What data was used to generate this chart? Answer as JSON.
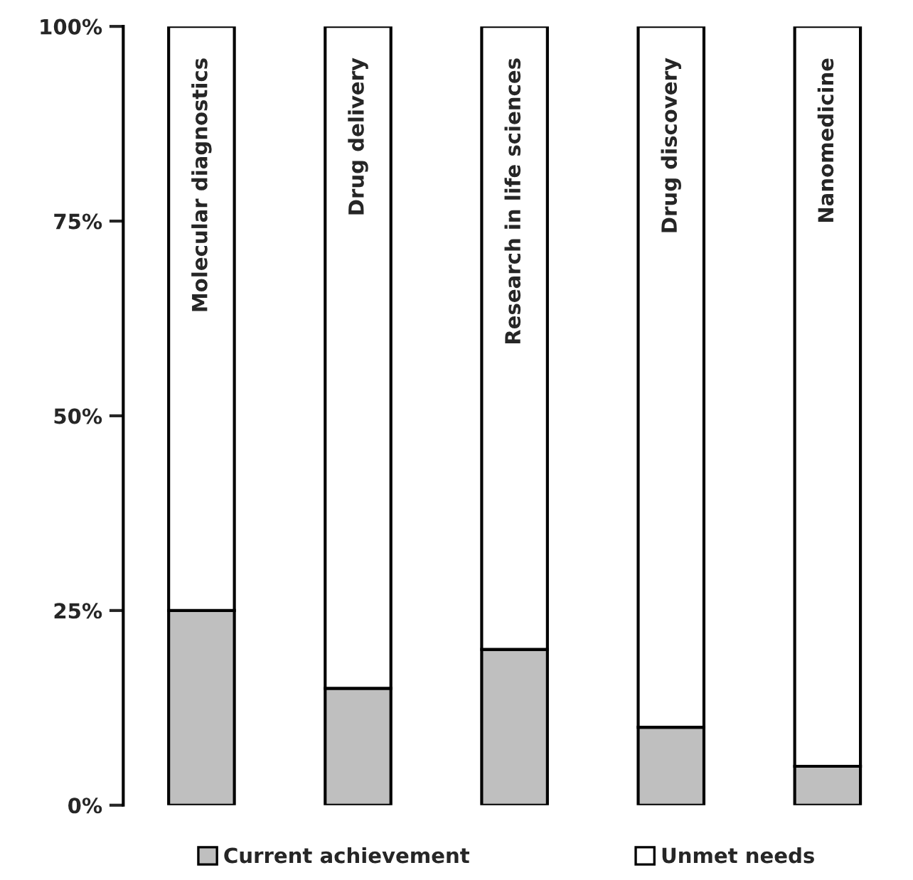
{
  "chart_data": {
    "type": "bar",
    "stacked": true,
    "categories": [
      "Molecular diagnostics",
      "Drug delivery",
      "Research in life sciences",
      "Drug discovery",
      "Nanomedicine"
    ],
    "series": [
      {
        "name": "Current achievement",
        "color": "#bfbfbf",
        "values": [
          25,
          15,
          20,
          10,
          5
        ]
      },
      {
        "name": "Unmet needs",
        "color": "#ffffff",
        "values": [
          75,
          85,
          80,
          90,
          95
        ]
      }
    ],
    "ylim": [
      0,
      100
    ],
    "yticks": [
      {
        "value": 0,
        "label": "0%"
      },
      {
        "value": 25,
        "label": "25%"
      },
      {
        "value": 50,
        "label": "50%"
      },
      {
        "value": 75,
        "label": "75%"
      },
      {
        "value": 100,
        "label": "100%"
      }
    ],
    "grid": false,
    "legend": "bottom"
  }
}
